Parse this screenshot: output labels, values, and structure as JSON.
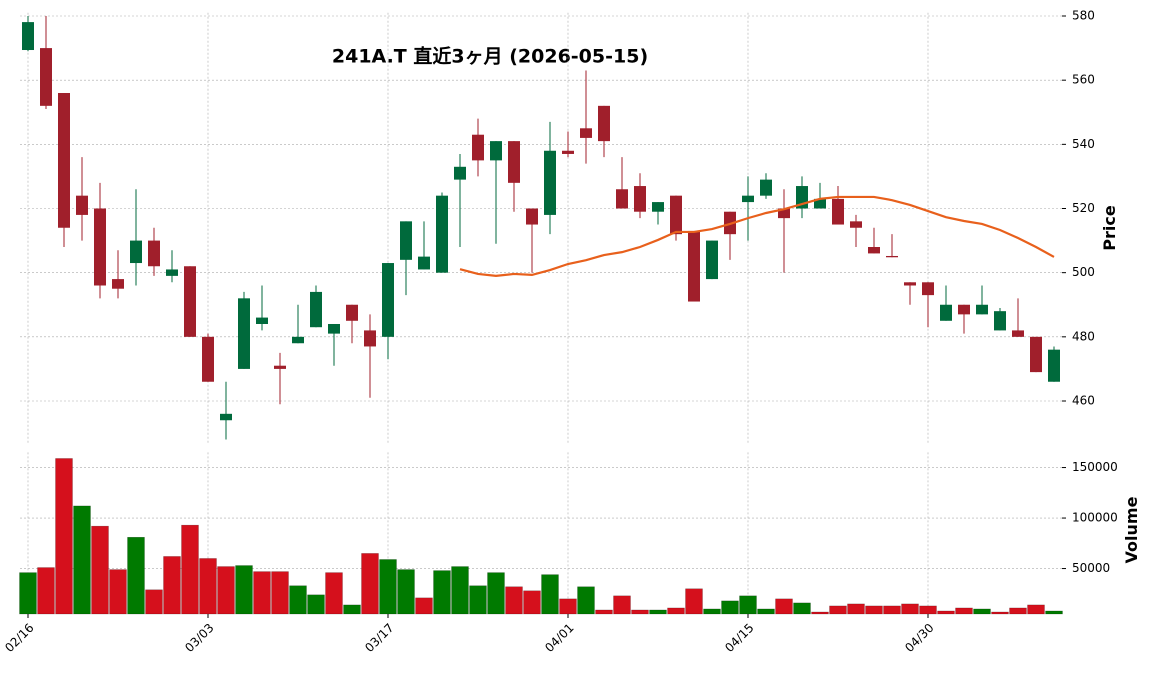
{
  "chart_data": [
    {
      "type": "candlestick",
      "title": "241A.T  直近3ヶ月  (2026-05-15)",
      "ylabel": "Price",
      "categories": [
        "02/16",
        null,
        null,
        null,
        null,
        null,
        null,
        null,
        null,
        null,
        "03/03",
        null,
        null,
        null,
        null,
        null,
        null,
        null,
        null,
        null,
        "03/17",
        null,
        null,
        null,
        null,
        null,
        null,
        null,
        null,
        null,
        "04/01",
        null,
        null,
        null,
        null,
        null,
        null,
        null,
        null,
        null,
        "04/15",
        null,
        null,
        null,
        null,
        null,
        null,
        null,
        null,
        null,
        "04/30",
        null,
        null,
        null,
        null,
        null,
        null,
        null
      ],
      "open": [
        569.4,
        570,
        556,
        524,
        520,
        498,
        503,
        510,
        499,
        502,
        480,
        454,
        470,
        484,
        471,
        478,
        483,
        481,
        490,
        482,
        480,
        504,
        501,
        500,
        529,
        543,
        535,
        541,
        520,
        518,
        538,
        545,
        552,
        526,
        527,
        519,
        524,
        513,
        498,
        519,
        522,
        524,
        520,
        520,
        520,
        523,
        516,
        508,
        505.2,
        497,
        497,
        485,
        490,
        487,
        482,
        482,
        480,
        466
      ],
      "high": [
        580,
        580,
        556,
        536,
        528,
        507,
        526,
        514,
        507,
        502,
        481,
        466,
        494,
        496,
        475,
        490,
        496,
        484,
        490,
        487,
        503,
        516,
        516,
        525,
        537,
        548,
        541,
        541,
        520,
        547,
        544,
        563,
        552,
        536,
        531,
        522,
        524,
        513,
        510,
        519,
        530,
        531,
        526,
        530,
        528,
        527,
        518,
        514,
        512,
        497,
        497,
        496,
        490,
        496,
        489,
        492,
        480,
        477
      ],
      "low": [
        569,
        551,
        508,
        510,
        492,
        492,
        496,
        499,
        497,
        480,
        466,
        448,
        470,
        482,
        459,
        478,
        483,
        471,
        478,
        461,
        473,
        493,
        501,
        500,
        508,
        530,
        509,
        519,
        500,
        512,
        536,
        534,
        536,
        520,
        517,
        515,
        510,
        491,
        498,
        504,
        510,
        523,
        500,
        517,
        520,
        515,
        508,
        506,
        504.8,
        490,
        483,
        485,
        481,
        487,
        482,
        480,
        469,
        466
      ],
      "close": [
        578.1,
        552,
        514,
        518,
        496,
        495,
        510,
        502,
        501,
        480,
        466,
        456,
        492,
        486,
        470,
        480,
        494,
        484,
        485,
        477,
        503,
        516,
        505,
        524,
        533,
        535,
        541,
        528,
        515,
        538,
        537,
        542,
        541,
        520,
        519,
        522,
        512,
        491,
        510,
        512,
        524,
        529,
        517,
        527,
        523,
        515,
        514,
        506,
        504.8,
        496,
        493,
        490,
        487,
        490,
        488,
        480,
        469,
        476
      ],
      "ma": {
        "color": "#e8601c",
        "values": [
          null,
          null,
          null,
          null,
          null,
          null,
          null,
          null,
          null,
          null,
          null,
          null,
          null,
          null,
          null,
          null,
          null,
          null,
          null,
          null,
          null,
          null,
          null,
          null,
          501.1,
          499.6,
          499,
          499.6,
          499.3,
          500.8,
          502.7,
          503.9,
          505.5,
          506.4,
          508,
          510.2,
          512.7,
          512.7,
          513.6,
          515.2,
          517,
          518.6,
          519.8,
          521.4,
          523,
          523.6,
          523.6,
          523.6,
          522.6,
          521.1,
          519.2,
          517.3,
          516.1,
          515.2,
          513.3,
          510.8,
          508,
          504.9
        ]
      },
      "up_color": "#006a3c",
      "down_color": "#a01f2b",
      "ylim": [
        447,
        581
      ],
      "yticks": [
        460,
        480,
        500,
        520,
        540,
        560,
        580
      ],
      "grid": true
    },
    {
      "type": "bar",
      "ylabel": "Volume",
      "values": [
        46000,
        51000,
        159000,
        112000,
        92000,
        49000,
        81000,
        29000,
        62000,
        93000,
        60000,
        52000,
        53000,
        47000,
        47000,
        33000,
        24000,
        46000,
        14000,
        65000,
        59000,
        49000,
        21000,
        48000,
        52000,
        33000,
        46000,
        32000,
        28000,
        44000,
        20000,
        32000,
        9000,
        23000,
        9000,
        9000,
        11000,
        30000,
        10000,
        18000,
        23000,
        10000,
        20000,
        16000,
        7000,
        13000,
        15000,
        13000,
        13000,
        15000,
        13000,
        8000,
        11000,
        10000,
        7000,
        11000,
        14000,
        8000
      ],
      "up_color": "#007a00",
      "down_color": "#d5101c",
      "ylim": [
        5000,
        165000
      ],
      "yticks": [
        50000,
        100000,
        150000
      ],
      "grid": true
    }
  ]
}
